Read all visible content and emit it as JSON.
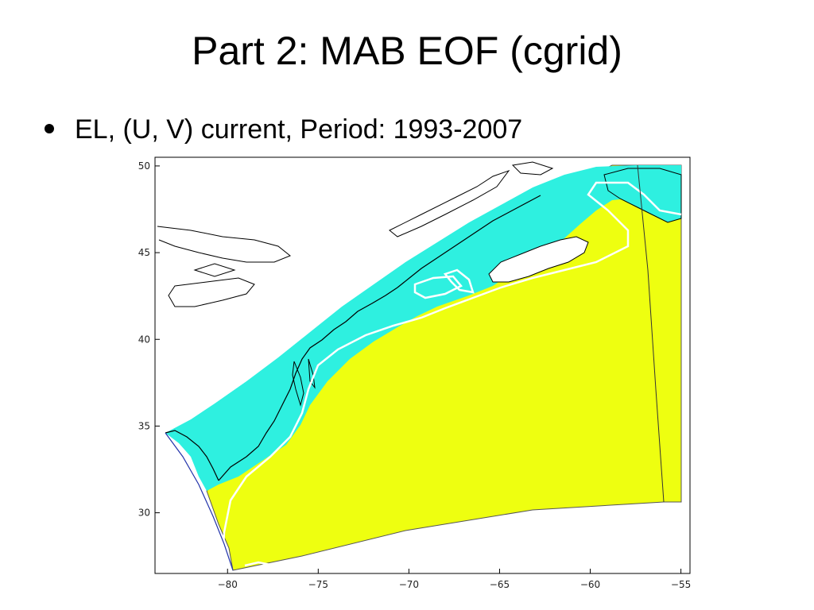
{
  "slide": {
    "title": "Part 2: MAB EOF (cgrid)",
    "bullet": "EL, (U, V) current, Period: 1993-2007"
  },
  "map": {
    "lon_range": [
      -84,
      -54.5
    ],
    "lat_range": [
      26.5,
      50.5
    ],
    "x_ticks": [
      {
        "value": -80,
        "label": "−80"
      },
      {
        "value": -75,
        "label": "−75"
      },
      {
        "value": -70,
        "label": "−70"
      },
      {
        "value": -65,
        "label": "−65"
      },
      {
        "value": -60,
        "label": "−60"
      },
      {
        "value": -55,
        "label": "−55"
      }
    ],
    "y_ticks": [
      {
        "value": 50,
        "label": "50"
      },
      {
        "value": 45,
        "label": "45"
      },
      {
        "value": 40,
        "label": "40"
      },
      {
        "value": 35,
        "label": "35"
      },
      {
        "value": 30,
        "label": "30"
      }
    ],
    "colors": {
      "shelf": "#2ef0e0",
      "deep": "#eeff10",
      "contour": "#ffffff",
      "coast": "#000000",
      "frame": "#000000"
    }
  }
}
